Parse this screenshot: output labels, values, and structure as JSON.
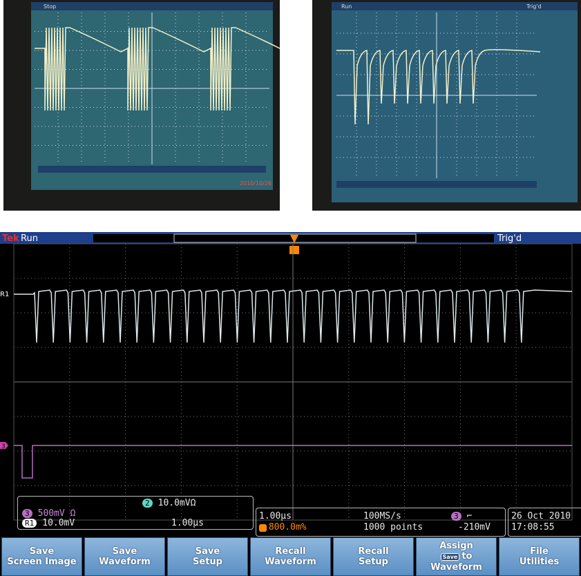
{
  "photo_left": {
    "status": "Stop",
    "date": "2010/10/26"
  },
  "photo_right": {
    "status": "Run",
    "trigger": "Trig'd"
  },
  "scope": {
    "brand": "Tek",
    "status": "Run",
    "trigger": "Trig'd",
    "ref_marker": "R1",
    "ch3_marker": "3",
    "ch2": {
      "num": "2",
      "scale": "10.0mVΩ"
    },
    "ch3": {
      "num": "3",
      "scale": "500mV Ω"
    },
    "ref": {
      "num": "R1",
      "scale": "10.0mV",
      "time": "1.00µs"
    },
    "timebase": "1.00µs",
    "position": "800.0m%",
    "sample_rate": "100MS/s",
    "record": "1000 points",
    "trig_source": "3",
    "trig_level": "-210mV",
    "date": "26 Oct 2010",
    "time": "17:08:55",
    "buttons": [
      {
        "lines": [
          "Save",
          "Screen Image"
        ]
      },
      {
        "lines": [
          "Save",
          "Waveform"
        ]
      },
      {
        "lines": [
          "Save",
          "Setup"
        ]
      },
      {
        "lines": [
          "Recall",
          "Waveform"
        ]
      },
      {
        "lines": [
          "Recall",
          "Setup"
        ]
      },
      {
        "lines": [
          "Assign",
          "Save",
          "to",
          "Waveform"
        ]
      },
      {
        "lines": [
          "File",
          "Utilities"
        ]
      }
    ]
  }
}
